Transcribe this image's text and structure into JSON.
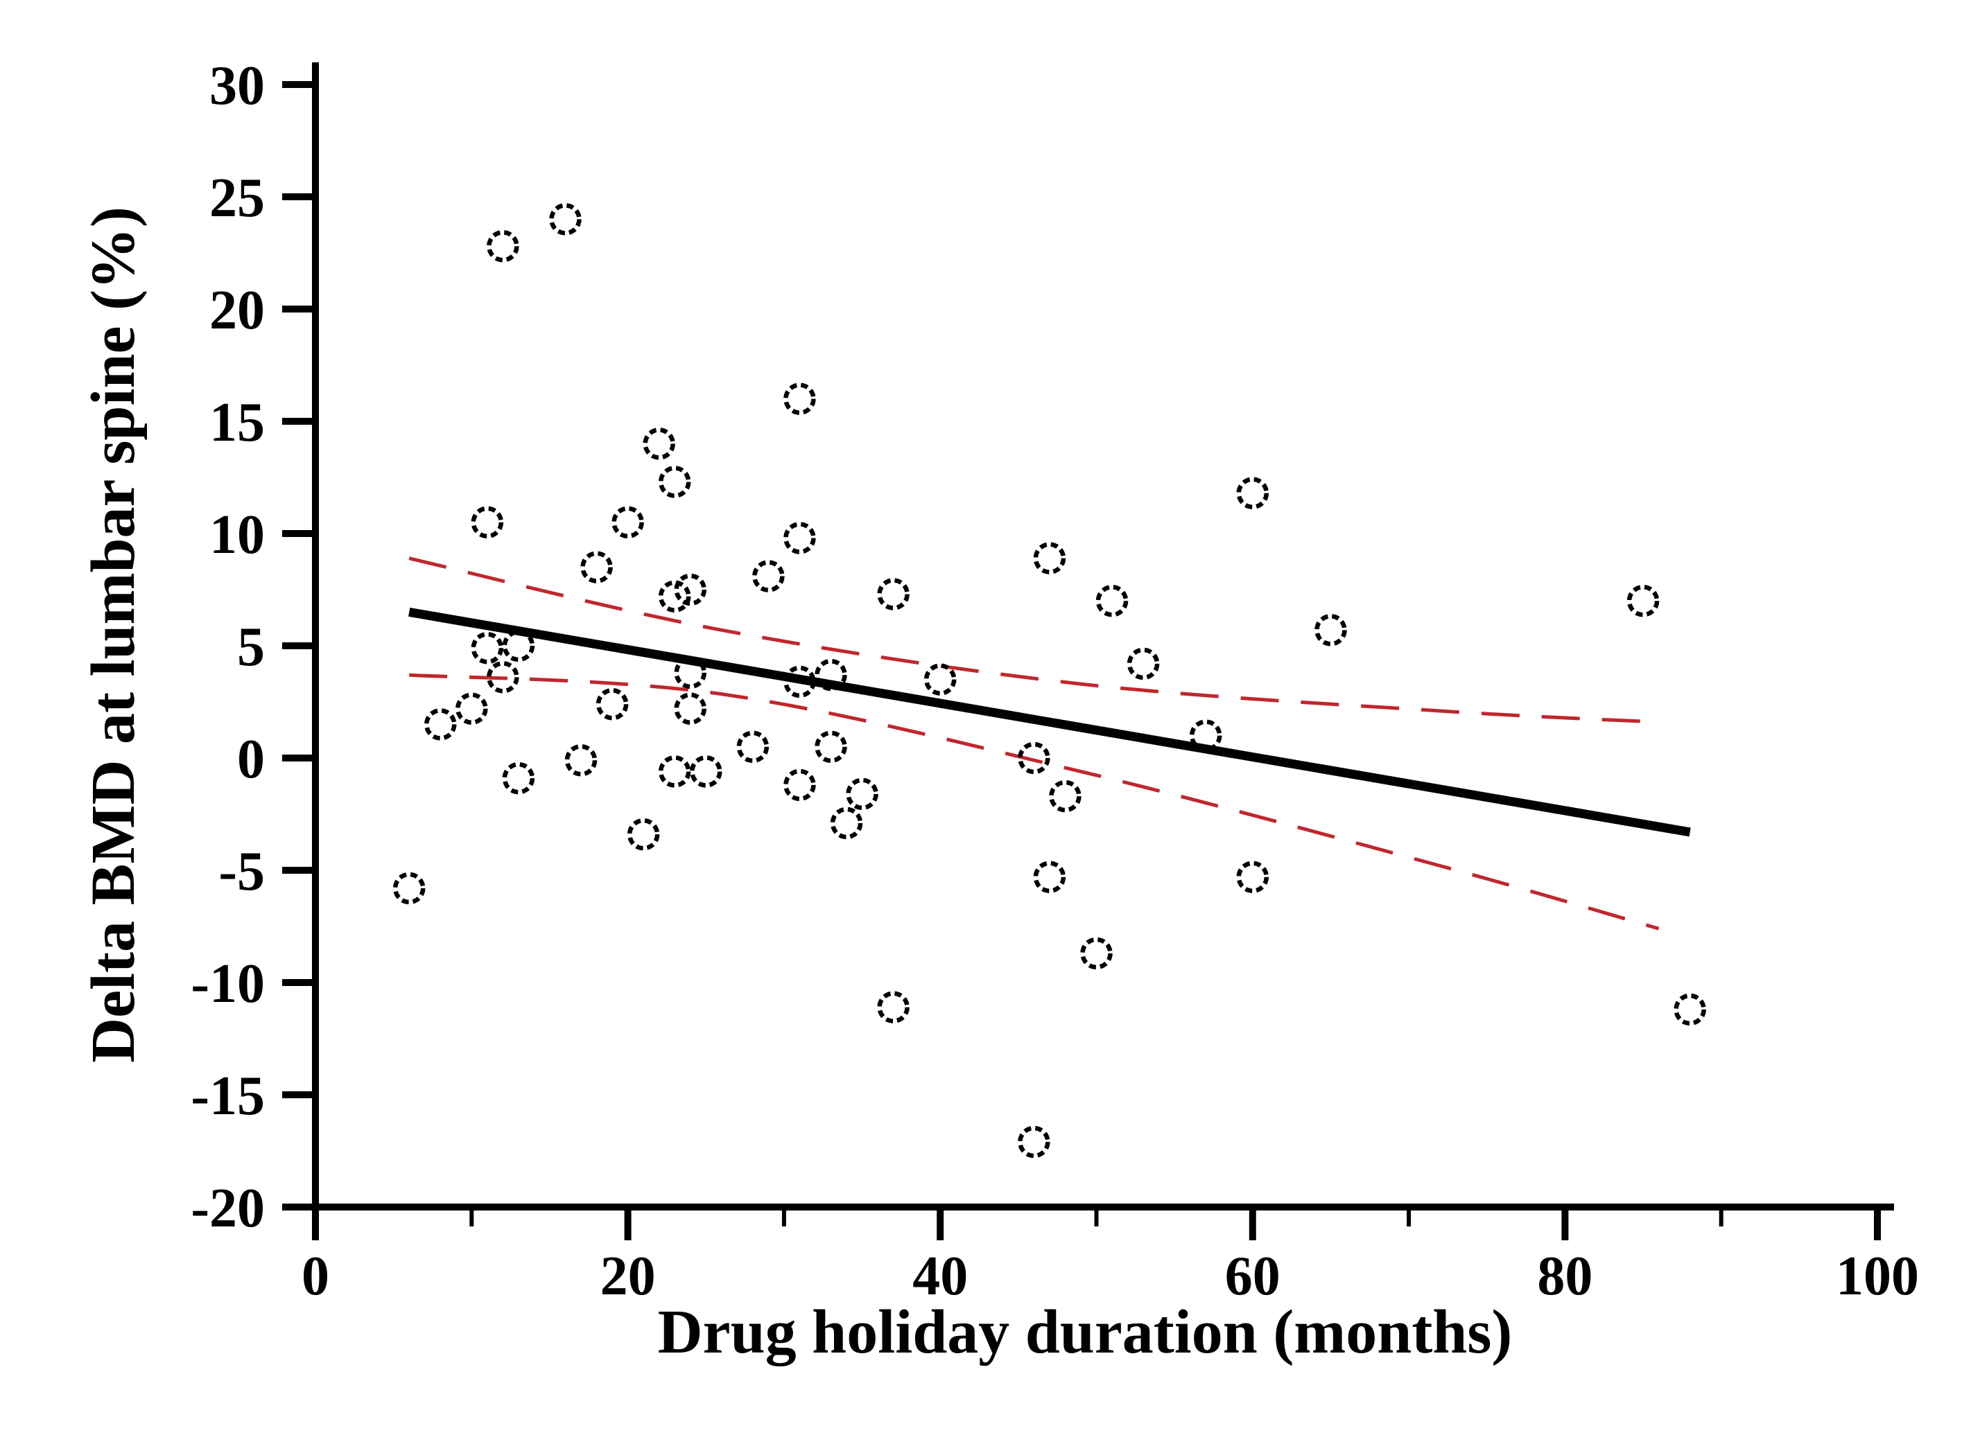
{
  "chart_data": {
    "type": "scatter",
    "title": "",
    "xlabel": "Drug holiday duration (months)",
    "ylabel": "Delta BMD at lumbar spine (%)",
    "xlim": [
      0,
      100
    ],
    "ylim": [
      -20,
      30
    ],
    "grid": false,
    "legend_position": "none",
    "x_tick_values": [
      0,
      20,
      40,
      60,
      80,
      100
    ],
    "x_tick_labels": [
      "0",
      "20",
      "40",
      "60",
      "80",
      "100"
    ],
    "x_minor_ticks": [
      10,
      30,
      50,
      70,
      90
    ],
    "y_tick_values": [
      30,
      25,
      20,
      15,
      10,
      5,
      0,
      -5,
      -10,
      -15,
      -20
    ],
    "y_tick_labels": [
      "30",
      "25",
      "20",
      "15",
      "10",
      "5",
      "0",
      "-5",
      "-10",
      "-15",
      "-20"
    ],
    "marker_style": "open-circle",
    "marker_color": "#000000",
    "regression_color": "#000000",
    "ci_color": "#c0272d",
    "points": [
      [
        6,
        -5.8
      ],
      [
        8,
        1.5
      ],
      [
        10,
        2.2
      ],
      [
        11,
        10.5
      ],
      [
        11,
        4.9
      ],
      [
        12,
        22.8
      ],
      [
        12,
        3.6
      ],
      [
        13,
        5.0
      ],
      [
        13,
        -0.9
      ],
      [
        16,
        24.0
      ],
      [
        17,
        -0.1
      ],
      [
        18,
        8.5
      ],
      [
        19,
        2.4
      ],
      [
        20,
        10.5
      ],
      [
        21,
        -3.4
      ],
      [
        22,
        14.0
      ],
      [
        23,
        12.3
      ],
      [
        23,
        7.2
      ],
      [
        23,
        -0.6
      ],
      [
        24,
        7.5
      ],
      [
        24,
        3.8
      ],
      [
        24,
        2.2
      ],
      [
        25,
        -0.6
      ],
      [
        28,
        0.5
      ],
      [
        29,
        8.1
      ],
      [
        31,
        16.0
      ],
      [
        31,
        9.8
      ],
      [
        31,
        3.4
      ],
      [
        31,
        -1.2
      ],
      [
        33,
        3.7
      ],
      [
        33,
        0.5
      ],
      [
        34,
        -2.9
      ],
      [
        35,
        -1.6
      ],
      [
        37,
        7.3
      ],
      [
        37,
        -11.1
      ],
      [
        40,
        3.5
      ],
      [
        46,
        0.0
      ],
      [
        46,
        -17.1
      ],
      [
        47,
        8.9
      ],
      [
        47,
        -5.3
      ],
      [
        48,
        -1.7
      ],
      [
        50,
        -8.7
      ],
      [
        51,
        7.0
      ],
      [
        53,
        4.2
      ],
      [
        57,
        1.0
      ],
      [
        60,
        11.8
      ],
      [
        60,
        -5.3
      ],
      [
        65,
        5.7
      ],
      [
        85,
        7.0
      ],
      [
        88,
        -11.2
      ]
    ],
    "regression_line": [
      [
        6,
        6.5
      ],
      [
        88,
        -3.3
      ]
    ],
    "ci_upper": [
      [
        6,
        8.9
      ],
      [
        26,
        5.7
      ],
      [
        49,
        3.3
      ],
      [
        72,
        2.1
      ],
      [
        86,
        1.6
      ]
    ],
    "ci_lower": [
      [
        6,
        3.7
      ],
      [
        26,
        2.85
      ],
      [
        49,
        -0.6
      ],
      [
        72,
        -4.8
      ],
      [
        86,
        -7.6
      ]
    ]
  }
}
